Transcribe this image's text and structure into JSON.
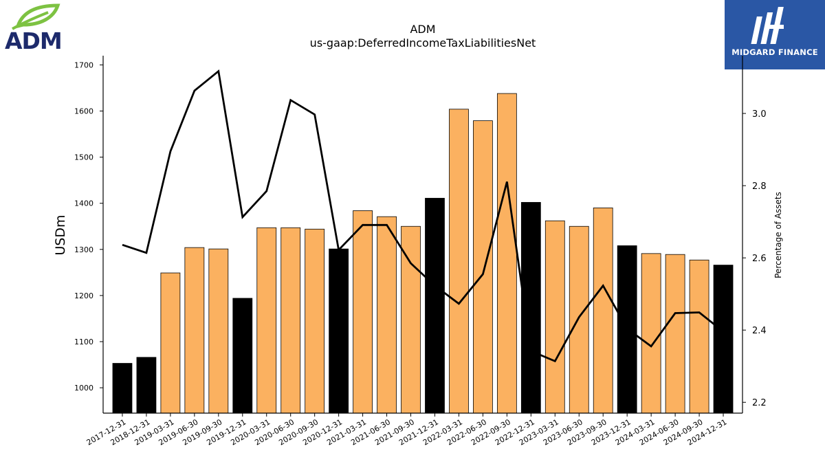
{
  "logos": {
    "company": "ADM",
    "publisher": "MIDGARD FINANCE"
  },
  "colors": {
    "bar_annual": "#000000",
    "bar_quarterly": "#fbb160",
    "line": "#000000",
    "publisher_bg": "#2a57a5",
    "adm_green": "#7dc242",
    "adm_navy": "#1d2a6b"
  },
  "chart_data": {
    "type": "bar",
    "title": "ADM",
    "subtitle": "us-gaap:DeferredIncomeTaxLiabilitiesNet",
    "xlabel": "",
    "ylabel": "USDm",
    "y2label": "Percentage of Assets",
    "ylim": [
      945,
      1720
    ],
    "y2lim": [
      2.17,
      3.16
    ],
    "yticks": [
      1000,
      1100,
      1200,
      1300,
      1400,
      1500,
      1600,
      1700
    ],
    "y2ticks": [
      2.2,
      2.4,
      2.6,
      2.8,
      3.0
    ],
    "grid": false,
    "categories": [
      "2017-12-31",
      "2018-12-31",
      "2019-03-31",
      "2019-06-30",
      "2019-09-30",
      "2019-12-31",
      "2020-03-31",
      "2020-06-30",
      "2020-09-30",
      "2020-12-31",
      "2021-03-31",
      "2021-06-30",
      "2021-09-30",
      "2021-12-31",
      "2022-03-31",
      "2022-06-30",
      "2022-09-30",
      "2022-12-31",
      "2023-03-31",
      "2023-06-30",
      "2023-09-30",
      "2023-12-31",
      "2024-03-31",
      "2024-06-30",
      "2024-09-30",
      "2024-12-31"
    ],
    "series": [
      {
        "kind": "bar",
        "axis": "left",
        "values": [
          1053,
          1066,
          1249,
          1304,
          1301,
          1194,
          1347,
          1347,
          1344,
          1301,
          1384,
          1371,
          1350,
          1411,
          1604,
          1579,
          1638,
          1402,
          1362,
          1350,
          1390,
          1308,
          1291,
          1289,
          1277,
          1266
        ],
        "annual": [
          true,
          true,
          false,
          false,
          false,
          true,
          false,
          false,
          false,
          true,
          false,
          false,
          false,
          true,
          false,
          false,
          false,
          true,
          false,
          false,
          false,
          true,
          false,
          false,
          false,
          true
        ]
      },
      {
        "kind": "line",
        "axis": "right",
        "values": [
          2.636,
          2.614,
          2.895,
          3.063,
          3.117,
          2.713,
          2.785,
          3.037,
          2.997,
          2.622,
          2.691,
          2.691,
          2.585,
          2.523,
          2.473,
          2.555,
          2.811,
          2.342,
          2.314,
          2.436,
          2.523,
          2.404,
          2.355,
          2.447,
          2.449,
          2.396
        ]
      }
    ]
  }
}
